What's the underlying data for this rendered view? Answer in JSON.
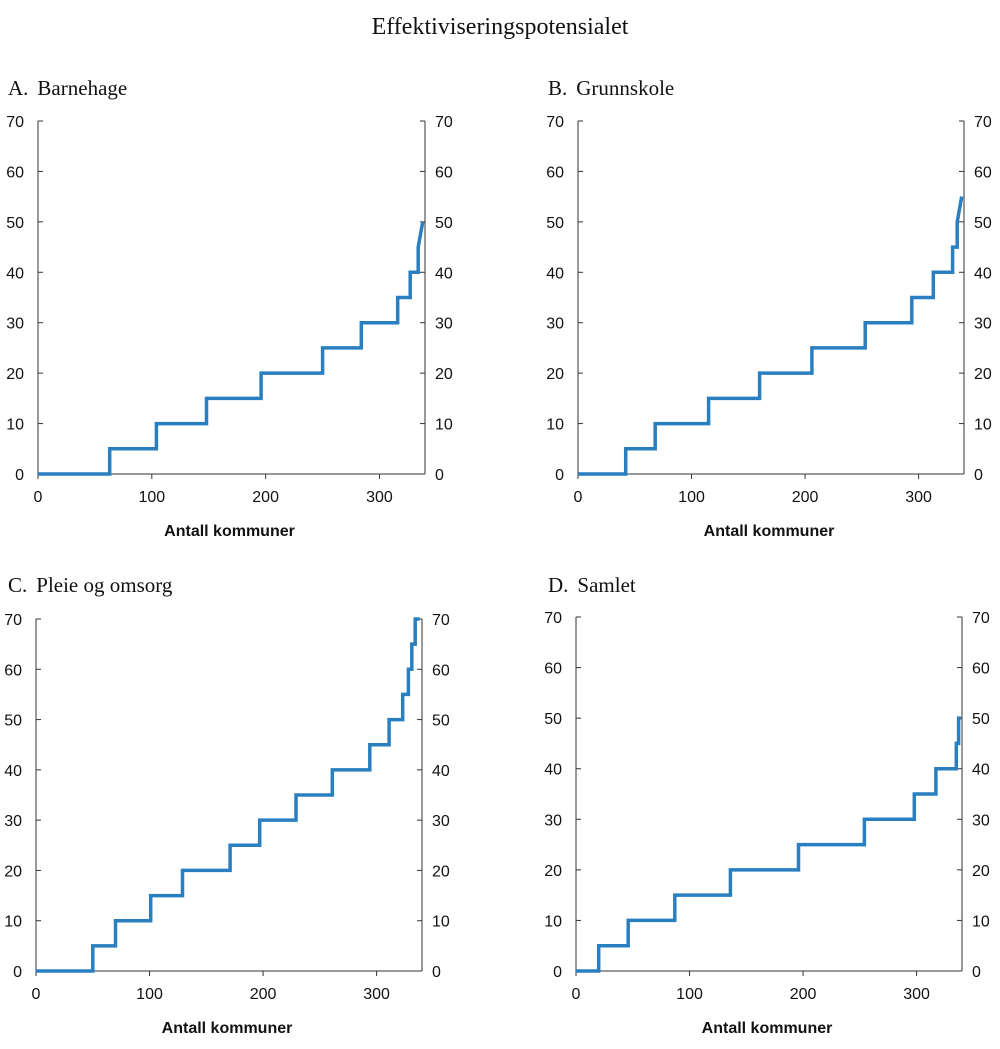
{
  "figure_title": "Effektiviseringspotensialet",
  "chart_data": [
    {
      "id": "A",
      "type": "line",
      "letter": "A.",
      "title": "Barnehage",
      "xlabel": "Antall kommuner",
      "ylabel": "",
      "xlim": [
        0,
        340
      ],
      "ylim": [
        0,
        70
      ],
      "xticks": [
        0,
        100,
        200,
        300
      ],
      "yticks": [
        0,
        10,
        20,
        30,
        40,
        50,
        60,
        70
      ],
      "color": "#2a7fc0",
      "series": [
        {
          "name": "Barnehage",
          "x": [
            0,
            63,
            63,
            104,
            104,
            148,
            148,
            196,
            196,
            250,
            250,
            284,
            284,
            316,
            316,
            327,
            327,
            334,
            334,
            338
          ],
          "y": [
            0,
            0,
            5,
            5,
            10,
            10,
            15,
            15,
            20,
            20,
            25,
            25,
            30,
            30,
            35,
            35,
            40,
            40,
            45,
            50
          ]
        }
      ]
    },
    {
      "id": "B",
      "type": "line",
      "letter": "B.",
      "title": "Grunnskole",
      "xlabel": "Antall kommuner",
      "ylabel": "",
      "xlim": [
        0,
        340
      ],
      "ylim": [
        0,
        70
      ],
      "xticks": [
        0,
        100,
        200,
        300
      ],
      "yticks": [
        0,
        10,
        20,
        30,
        40,
        50,
        60,
        70
      ],
      "color": "#2a7fc0",
      "series": [
        {
          "name": "Grunnskole",
          "x": [
            0,
            42,
            42,
            68,
            68,
            115,
            115,
            160,
            160,
            206,
            206,
            253,
            253,
            294,
            294,
            313,
            313,
            330,
            330,
            334,
            334,
            338
          ],
          "y": [
            0,
            0,
            5,
            5,
            10,
            10,
            15,
            15,
            20,
            20,
            25,
            25,
            30,
            30,
            35,
            35,
            40,
            40,
            45,
            45,
            50,
            55
          ]
        }
      ]
    },
    {
      "id": "C",
      "type": "line",
      "letter": "C.",
      "title": "Pleie og omsorg",
      "xlabel": "Antall kommuner",
      "ylabel": "",
      "xlim": [
        0,
        340
      ],
      "ylim": [
        0,
        70
      ],
      "xticks": [
        0,
        100,
        200,
        300
      ],
      "yticks": [
        0,
        10,
        20,
        30,
        40,
        50,
        60,
        70
      ],
      "color": "#2a7fc0",
      "series": [
        {
          "name": "Pleie og omsorg",
          "x": [
            0,
            50,
            50,
            70,
            70,
            101,
            101,
            129,
            129,
            171,
            171,
            197,
            197,
            229,
            229,
            261,
            261,
            294,
            294,
            311,
            311,
            323,
            323,
            328,
            328,
            331,
            331,
            334,
            334,
            338
          ],
          "y": [
            0,
            0,
            5,
            5,
            10,
            10,
            15,
            15,
            20,
            20,
            25,
            25,
            30,
            30,
            35,
            35,
            40,
            40,
            45,
            45,
            50,
            50,
            55,
            55,
            60,
            60,
            65,
            65,
            70,
            70
          ]
        }
      ]
    },
    {
      "id": "D",
      "type": "line",
      "letter": "D.",
      "title": "Samlet",
      "xlabel": "Antall kommuner",
      "ylabel": "",
      "xlim": [
        0,
        340
      ],
      "ylim": [
        0,
        70
      ],
      "xticks": [
        0,
        100,
        200,
        300
      ],
      "yticks": [
        0,
        10,
        20,
        30,
        40,
        50,
        60,
        70
      ],
      "color": "#2a7fc0",
      "series": [
        {
          "name": "Samlet",
          "x": [
            0,
            20,
            20,
            46,
            46,
            87,
            87,
            136,
            136,
            196,
            196,
            254,
            254,
            298,
            298,
            317,
            317,
            335,
            335,
            337,
            337,
            339
          ],
          "y": [
            0,
            0,
            5,
            5,
            10,
            10,
            15,
            15,
            20,
            20,
            25,
            25,
            30,
            30,
            35,
            35,
            40,
            40,
            45,
            45,
            50,
            50
          ]
        }
      ]
    }
  ]
}
